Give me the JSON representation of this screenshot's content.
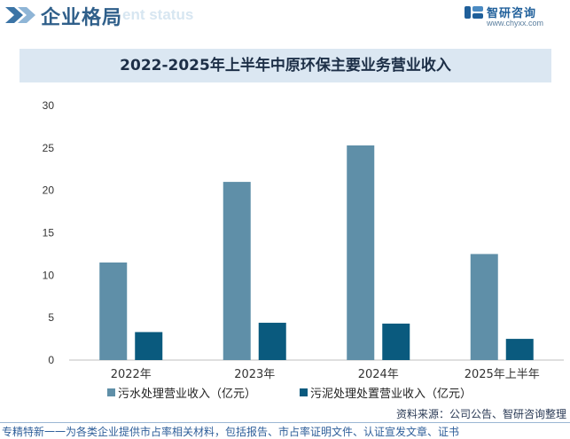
{
  "header": {
    "title": "企业格局",
    "ghost_text": "ent status",
    "logo_name": "智研咨询",
    "logo_url": "www.chyxx.com"
  },
  "chart_data": {
    "type": "bar",
    "title": "2022-2025年上半年中原环保主要业务营业收入",
    "categories": [
      "2022年",
      "2023年",
      "2024年",
      "2025年上半年"
    ],
    "series": [
      {
        "name": "污水处理营业收入（亿元）",
        "values": [
          11.5,
          21.0,
          25.3,
          12.5
        ],
        "color": "#5f8fa8"
      },
      {
        "name": "污泥处理处置营业收入（亿元）",
        "values": [
          3.3,
          4.4,
          4.3,
          2.5
        ],
        "color": "#0a5a7e"
      }
    ],
    "yticks": [
      0,
      5,
      10,
      15,
      20,
      25,
      30
    ],
    "ylim": [
      0,
      30
    ],
    "grid": false,
    "legend_position": "bottom"
  },
  "source": "资料来源：公司公告、智研咨询整理",
  "footer": "专精特新一一为各类企业提供市占率相关材料，包括报告、市占率证明文件、认证宣发文章、证书"
}
